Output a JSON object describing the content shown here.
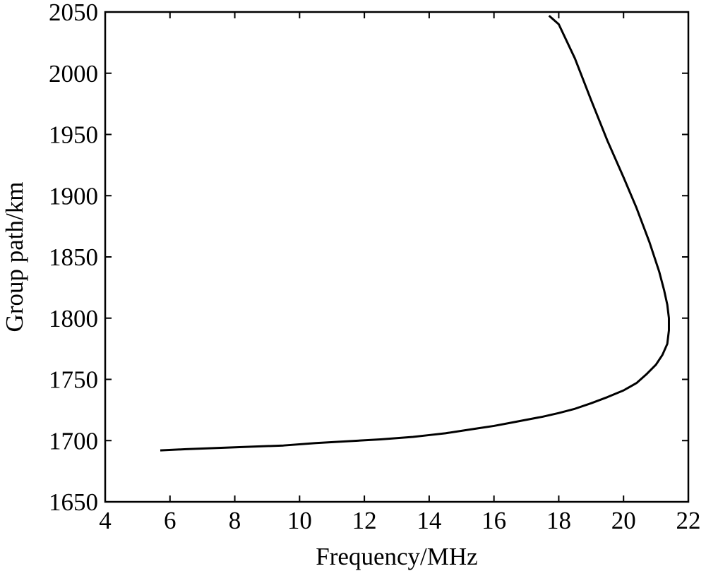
{
  "chart_data": {
    "type": "line",
    "xlabel": "Frequency/MHz",
    "ylabel": "Group path/km",
    "xlim": [
      4,
      22
    ],
    "ylim": [
      1650,
      2050
    ],
    "xticks": [
      4,
      6,
      8,
      10,
      12,
      14,
      16,
      18,
      20,
      22
    ],
    "yticks": [
      1650,
      1700,
      1750,
      1800,
      1850,
      1900,
      1950,
      2000,
      2050
    ],
    "grid": false,
    "legend": "none",
    "line_color": "#000000",
    "series": [
      {
        "x": [
          5.7,
          6.5,
          7.5,
          8.5,
          9.5,
          10.5,
          11.5,
          12.5,
          13.5,
          14.0,
          14.5,
          15.0,
          15.5,
          16.0,
          16.5,
          17.0,
          17.5,
          18.0,
          18.5,
          19.0,
          19.5,
          20.0,
          20.4,
          20.7,
          21.0,
          21.2,
          21.35,
          21.4,
          21.4,
          21.35,
          21.25,
          21.1,
          20.8,
          20.4,
          20.0,
          19.5,
          19.0,
          18.5,
          18.0,
          17.7
        ],
        "y": [
          1692,
          1693,
          1694,
          1695,
          1696,
          1698,
          1699.5,
          1701,
          1703,
          1704.5,
          1706,
          1708,
          1710,
          1712,
          1714.5,
          1717,
          1719.5,
          1722.5,
          1726,
          1730.5,
          1735.5,
          1741,
          1747,
          1754,
          1762,
          1770,
          1779,
          1790,
          1800,
          1811,
          1823,
          1838,
          1862,
          1890,
          1915,
          1945,
          1978,
          2012,
          2040,
          2047
        ]
      }
    ]
  }
}
